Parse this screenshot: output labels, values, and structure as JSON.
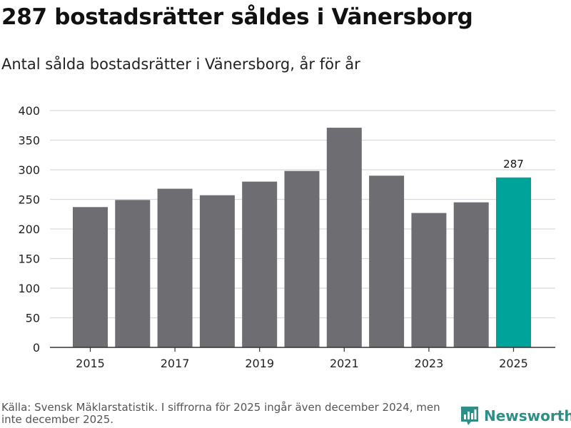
{
  "title": "287 bostadsrätter såldes i Vänersborg",
  "subtitle": "Antal sålda bostadsrätter i Vänersborg, år för år",
  "source": "Källa: Svensk Mäklarstatistik. I siffrorna för 2025 ingår även december 2024, men inte december 2025.",
  "brand": {
    "name": "Newsworthy",
    "color": "#2d8f86"
  },
  "colors": {
    "bar": "#6e6d72",
    "highlight": "#00a399",
    "grid": "#d9d9d9",
    "axis": "#333333"
  },
  "chart_data": {
    "type": "bar",
    "title": "Antal sålda bostadsrätter i Vänersborg, år för år",
    "xlabel": "",
    "ylabel": "",
    "categories": [
      "2015",
      "2016",
      "2017",
      "2018",
      "2019",
      "2020",
      "2021",
      "2022",
      "2023",
      "2024",
      "2025"
    ],
    "values": [
      237,
      249,
      268,
      257,
      280,
      298,
      371,
      290,
      227,
      245,
      287
    ],
    "x_tick_labels": [
      "2015",
      "2017",
      "2019",
      "2021",
      "2023",
      "2025"
    ],
    "y_ticks": [
      0,
      50,
      100,
      150,
      200,
      250,
      300,
      350,
      400
    ],
    "ylim": [
      0,
      400
    ],
    "grid": true,
    "highlight_category": "2025",
    "data_labels": [
      {
        "category": "2025",
        "text": "287"
      }
    ]
  }
}
